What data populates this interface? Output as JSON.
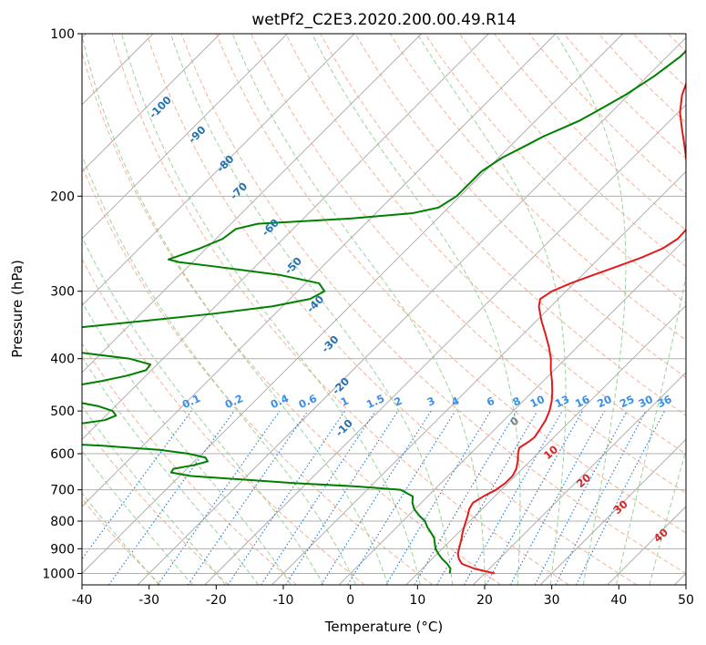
{
  "chart_data": {
    "type": "line",
    "title": "wetPf2_C2E3.2020.200.00.49.R14",
    "xlabel": "Temperature (°C)",
    "ylabel": "Pressure (hPa)",
    "xlim": [
      -40,
      50
    ],
    "ylim": [
      1050,
      100
    ],
    "y_scale": "log",
    "skew": 35,
    "grid": true,
    "x_ticks": [
      "-40",
      "-30",
      "-20",
      "-10",
      "0",
      "10",
      "20",
      "30",
      "40",
      "50"
    ],
    "x_tick_values": [
      -40,
      -30,
      -20,
      -10,
      0,
      10,
      20,
      30,
      40,
      50
    ],
    "y_ticks": [
      "100",
      "200",
      "300",
      "400",
      "500",
      "600",
      "700",
      "800",
      "900",
      "1000"
    ],
    "y_tick_values": [
      100,
      200,
      300,
      400,
      500,
      600,
      700,
      800,
      900,
      1000
    ],
    "colors": {
      "temperature": "#e31a1c",
      "dewpoint": "#008000",
      "isotherm": "#a8a8a8",
      "dry_adiabat": "#f4a582",
      "moist_adiabat": "#7fc97f",
      "mixing_ratio": "#1f78d4",
      "dry_label": "#2171b5",
      "mixing_label": "#3a8fe6",
      "moist_label": "#d62728",
      "moist_zero_label": "#808080"
    },
    "series": [
      {
        "name": "temperature",
        "points": [
          [
            1000,
            21.5
          ],
          [
            980,
            17.8
          ],
          [
            960,
            15.2
          ],
          [
            940,
            14.0
          ],
          [
            920,
            13.1
          ],
          [
            900,
            12.5
          ],
          [
            880,
            11.9
          ],
          [
            860,
            11.3
          ],
          [
            840,
            10.6
          ],
          [
            820,
            10.0
          ],
          [
            800,
            9.4
          ],
          [
            780,
            8.8
          ],
          [
            760,
            8.1
          ],
          [
            740,
            7.7
          ],
          [
            720,
            8.3
          ],
          [
            700,
            9.2
          ],
          [
            680,
            9.6
          ],
          [
            660,
            9.6
          ],
          [
            640,
            9.1
          ],
          [
            620,
            8.2
          ],
          [
            600,
            7.1
          ],
          [
            585,
            6.4
          ],
          [
            570,
            6.9
          ],
          [
            560,
            7.1
          ],
          [
            540,
            6.7
          ],
          [
            520,
            6.2
          ],
          [
            500,
            5.4
          ],
          [
            480,
            4.3
          ],
          [
            460,
            2.9
          ],
          [
            440,
            1.3
          ],
          [
            420,
            -0.5
          ],
          [
            400,
            -2.2
          ],
          [
            380,
            -4.3
          ],
          [
            360,
            -6.7
          ],
          [
            340,
            -9.3
          ],
          [
            320,
            -11.8
          ],
          [
            310,
            -12.7
          ],
          [
            300,
            -12.1
          ],
          [
            290,
            -10.5
          ],
          [
            280,
            -8.4
          ],
          [
            270,
            -6.1
          ],
          [
            260,
            -3.8
          ],
          [
            250,
            -2.0
          ],
          [
            240,
            -1.2
          ],
          [
            230,
            -1.3
          ],
          [
            220,
            -2.1
          ],
          [
            210,
            -3.5
          ],
          [
            200,
            -5.5
          ],
          [
            190,
            -7.6
          ],
          [
            180,
            -9.8
          ],
          [
            170,
            -12.0
          ],
          [
            160,
            -14.4
          ],
          [
            150,
            -17.0
          ],
          [
            140,
            -19.7
          ],
          [
            130,
            -22.0
          ],
          [
            120,
            -23.8
          ],
          [
            110,
            -25.3
          ],
          [
            100,
            -27.8
          ]
        ]
      },
      {
        "name": "dewpoint",
        "points": [
          [
            1000,
            14.8
          ],
          [
            990,
            14.5
          ],
          [
            980,
            14.2
          ],
          [
            960,
            13.0
          ],
          [
            940,
            11.5
          ],
          [
            920,
            10.2
          ],
          [
            900,
            9.0
          ],
          [
            880,
            8.1
          ],
          [
            860,
            7.2
          ],
          [
            840,
            5.9
          ],
          [
            820,
            4.5
          ],
          [
            800,
            3.3
          ],
          [
            780,
            1.5
          ],
          [
            760,
            -0.1
          ],
          [
            740,
            -1.3
          ],
          [
            720,
            -2.2
          ],
          [
            700,
            -5.0
          ],
          [
            690,
            -12.0
          ],
          [
            680,
            -22.0
          ],
          [
            670,
            -30.0
          ],
          [
            660,
            -38.3
          ],
          [
            650,
            -41.8
          ],
          [
            640,
            -42.0
          ],
          [
            630,
            -39.5
          ],
          [
            620,
            -38.0
          ],
          [
            610,
            -38.9
          ],
          [
            600,
            -42.0
          ],
          [
            590,
            -47.0
          ],
          [
            580,
            -56.0
          ],
          [
            570,
            -68.0
          ],
          [
            560,
            -75.6
          ],
          [
            555,
            -76.5
          ],
          [
            550,
            -75.0
          ],
          [
            540,
            -70.0
          ],
          [
            530,
            -63.5
          ],
          [
            520,
            -59.5
          ],
          [
            510,
            -58.5
          ],
          [
            500,
            -59.7
          ],
          [
            490,
            -62.5
          ],
          [
            480,
            -67.0
          ],
          [
            470,
            -72.0
          ],
          [
            465,
            -74.2
          ],
          [
            460,
            -73.3
          ],
          [
            450,
            -69.5
          ],
          [
            440,
            -65.8
          ],
          [
            430,
            -62.8
          ],
          [
            420,
            -60.8
          ],
          [
            410,
            -61.0
          ],
          [
            400,
            -65.0
          ],
          [
            390,
            -73.0
          ],
          [
            380,
            -80.0
          ],
          [
            375,
            -82.0
          ],
          [
            370,
            -85.0
          ],
          [
            360,
            -84.0
          ],
          [
            355,
            -82.0
          ],
          [
            350,
            -77.0
          ],
          [
            340,
            -68.0
          ],
          [
            330,
            -59.0
          ],
          [
            320,
            -51.5
          ],
          [
            310,
            -47.0
          ],
          [
            300,
            -46.0
          ],
          [
            290,
            -48.0
          ],
          [
            280,
            -55.0
          ],
          [
            270,
            -66.0
          ],
          [
            265,
            -72.0
          ],
          [
            262,
            -74.0
          ],
          [
            258,
            -73.0
          ],
          [
            250,
            -71.0
          ],
          [
            240,
            -69.0
          ],
          [
            230,
            -68.5
          ],
          [
            225,
            -66.0
          ],
          [
            220,
            -53.0
          ],
          [
            215,
            -44.5
          ],
          [
            210,
            -41.5
          ],
          [
            200,
            -40.5
          ],
          [
            190,
            -40.5
          ],
          [
            180,
            -40.5
          ],
          [
            170,
            -39.5
          ],
          [
            160,
            -37.5
          ],
          [
            155,
            -36.5
          ],
          [
            150,
            -35.0
          ],
          [
            145,
            -33.5
          ],
          [
            140,
            -32.5
          ],
          [
            130,
            -30.5
          ],
          [
            120,
            -29.0
          ],
          [
            115,
            -28.5
          ],
          [
            110,
            -28.0
          ],
          [
            105,
            -28.0
          ],
          [
            100,
            -28.5
          ]
        ]
      }
    ],
    "dry_adiabat_labels": [
      "-100",
      "-90",
      "-80",
      "-70",
      "-60",
      "-50",
      "-40",
      "-30",
      "-20",
      "-10"
    ],
    "dry_adiabat_label_values": [
      -100,
      -90,
      -80,
      -70,
      -60,
      -50,
      -40,
      -30,
      -20,
      -10
    ],
    "mixing_ratio_labels": [
      "0.1",
      "0.2",
      "0.4",
      "0.6",
      "1",
      "1.5",
      "2",
      "3",
      "4",
      "6",
      "8",
      "10",
      "13",
      "16",
      "20",
      "25",
      "30",
      "36"
    ],
    "mixing_ratio_values": [
      0.1,
      0.2,
      0.4,
      0.6,
      1,
      1.5,
      2,
      3,
      4,
      6,
      8,
      10,
      13,
      16,
      20,
      25,
      30,
      36
    ],
    "moist_adiabat_labels": [
      "0",
      "10",
      "20",
      "30",
      "40"
    ],
    "moist_adiabat_label_values": [
      0,
      10,
      20,
      30,
      40
    ]
  }
}
